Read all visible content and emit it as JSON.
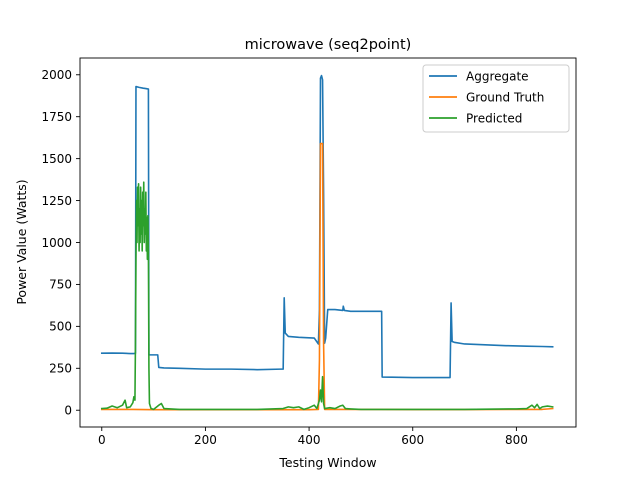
{
  "chart_data": {
    "type": "line",
    "title": "microwave (seq2point)",
    "xlabel": "Testing Window",
    "ylabel": "Power Value (Watts)",
    "xlim": [
      -42,
      915
    ],
    "ylim": [
      -100,
      2100
    ],
    "xticks": [
      0,
      200,
      400,
      600,
      800
    ],
    "yticks": [
      0,
      250,
      500,
      750,
      1000,
      1250,
      1500,
      1750,
      2000
    ],
    "grid": false,
    "legend_position": "upper-right",
    "series": [
      {
        "name": "Aggregate",
        "color": "#1f77b4",
        "points": [
          [
            0,
            340
          ],
          [
            20,
            341
          ],
          [
            40,
            340
          ],
          [
            55,
            338
          ],
          [
            62,
            338
          ],
          [
            65,
            340
          ],
          [
            66,
            1930
          ],
          [
            72,
            1925
          ],
          [
            80,
            1920
          ],
          [
            85,
            1918
          ],
          [
            90,
            1915
          ],
          [
            91,
            330
          ],
          [
            100,
            330
          ],
          [
            108,
            330
          ],
          [
            110,
            255
          ],
          [
            120,
            252
          ],
          [
            150,
            250
          ],
          [
            200,
            245
          ],
          [
            250,
            245
          ],
          [
            300,
            242
          ],
          [
            345,
            245
          ],
          [
            350,
            245
          ],
          [
            352,
            670
          ],
          [
            354,
            460
          ],
          [
            360,
            440
          ],
          [
            380,
            435
          ],
          [
            400,
            432
          ],
          [
            410,
            430
          ],
          [
            418,
            395
          ],
          [
            420,
            600
          ],
          [
            422,
            1980
          ],
          [
            424,
            1995
          ],
          [
            426,
            1970
          ],
          [
            428,
            1300
          ],
          [
            430,
            400
          ],
          [
            432,
            430
          ],
          [
            436,
            600
          ],
          [
            450,
            600
          ],
          [
            465,
            595
          ],
          [
            466,
            620
          ],
          [
            468,
            595
          ],
          [
            480,
            590
          ],
          [
            500,
            590
          ],
          [
            530,
            590
          ],
          [
            540,
            590
          ],
          [
            541,
            198
          ],
          [
            560,
            197
          ],
          [
            600,
            195
          ],
          [
            640,
            195
          ],
          [
            672,
            195
          ],
          [
            674,
            640
          ],
          [
            676,
            410
          ],
          [
            680,
            405
          ],
          [
            700,
            395
          ],
          [
            740,
            390
          ],
          [
            780,
            385
          ],
          [
            820,
            382
          ],
          [
            850,
            380
          ],
          [
            870,
            378
          ]
        ]
      },
      {
        "name": "Ground Truth",
        "color": "#ff7f0e",
        "points": [
          [
            0,
            5
          ],
          [
            60,
            5
          ],
          [
            100,
            3
          ],
          [
            200,
            3
          ],
          [
            300,
            3
          ],
          [
            400,
            3
          ],
          [
            418,
            5
          ],
          [
            420,
            300
          ],
          [
            422,
            1590
          ],
          [
            426,
            1590
          ],
          [
            428,
            400
          ],
          [
            430,
            5
          ],
          [
            500,
            5
          ],
          [
            600,
            4
          ],
          [
            700,
            4
          ],
          [
            800,
            5
          ],
          [
            850,
            5
          ],
          [
            870,
            10
          ]
        ]
      },
      {
        "name": "Predicted",
        "color": "#2ca02c",
        "points": [
          [
            0,
            10
          ],
          [
            10,
            12
          ],
          [
            20,
            25
          ],
          [
            30,
            15
          ],
          [
            40,
            30
          ],
          [
            45,
            60
          ],
          [
            48,
            15
          ],
          [
            55,
            20
          ],
          [
            60,
            45
          ],
          [
            62,
            80
          ],
          [
            64,
            60
          ],
          [
            65,
            400
          ],
          [
            66,
            900
          ],
          [
            67,
            1250
          ],
          [
            68,
            1000
          ],
          [
            69,
            1330
          ],
          [
            70,
            1100
          ],
          [
            71,
            1350
          ],
          [
            72,
            950
          ],
          [
            73,
            1200
          ],
          [
            74,
            1000
          ],
          [
            75,
            1330
          ],
          [
            76,
            1050
          ],
          [
            77,
            1250
          ],
          [
            78,
            950
          ],
          [
            79,
            1300
          ],
          [
            80,
            1100
          ],
          [
            81,
            1360
          ],
          [
            82,
            1000
          ],
          [
            83,
            1200
          ],
          [
            84,
            1050
          ],
          [
            85,
            1300
          ],
          [
            86,
            950
          ],
          [
            87,
            1150
          ],
          [
            88,
            900
          ],
          [
            89,
            1160
          ],
          [
            90,
            950
          ],
          [
            91,
            250
          ],
          [
            92,
            40
          ],
          [
            95,
            10
          ],
          [
            100,
            5
          ],
          [
            110,
            30
          ],
          [
            115,
            40
          ],
          [
            120,
            10
          ],
          [
            150,
            5
          ],
          [
            200,
            5
          ],
          [
            250,
            5
          ],
          [
            300,
            5
          ],
          [
            350,
            10
          ],
          [
            360,
            20
          ],
          [
            370,
            15
          ],
          [
            380,
            20
          ],
          [
            390,
            5
          ],
          [
            400,
            15
          ],
          [
            410,
            30
          ],
          [
            415,
            10
          ],
          [
            420,
            60
          ],
          [
            422,
            120
          ],
          [
            424,
            50
          ],
          [
            426,
            200
          ],
          [
            428,
            40
          ],
          [
            430,
            10
          ],
          [
            440,
            15
          ],
          [
            450,
            10
          ],
          [
            460,
            25
          ],
          [
            465,
            30
          ],
          [
            470,
            10
          ],
          [
            480,
            8
          ],
          [
            500,
            5
          ],
          [
            600,
            5
          ],
          [
            700,
            5
          ],
          [
            800,
            8
          ],
          [
            820,
            10
          ],
          [
            830,
            30
          ],
          [
            835,
            15
          ],
          [
            840,
            35
          ],
          [
            845,
            10
          ],
          [
            850,
            20
          ],
          [
            860,
            25
          ],
          [
            870,
            20
          ]
        ]
      }
    ]
  }
}
